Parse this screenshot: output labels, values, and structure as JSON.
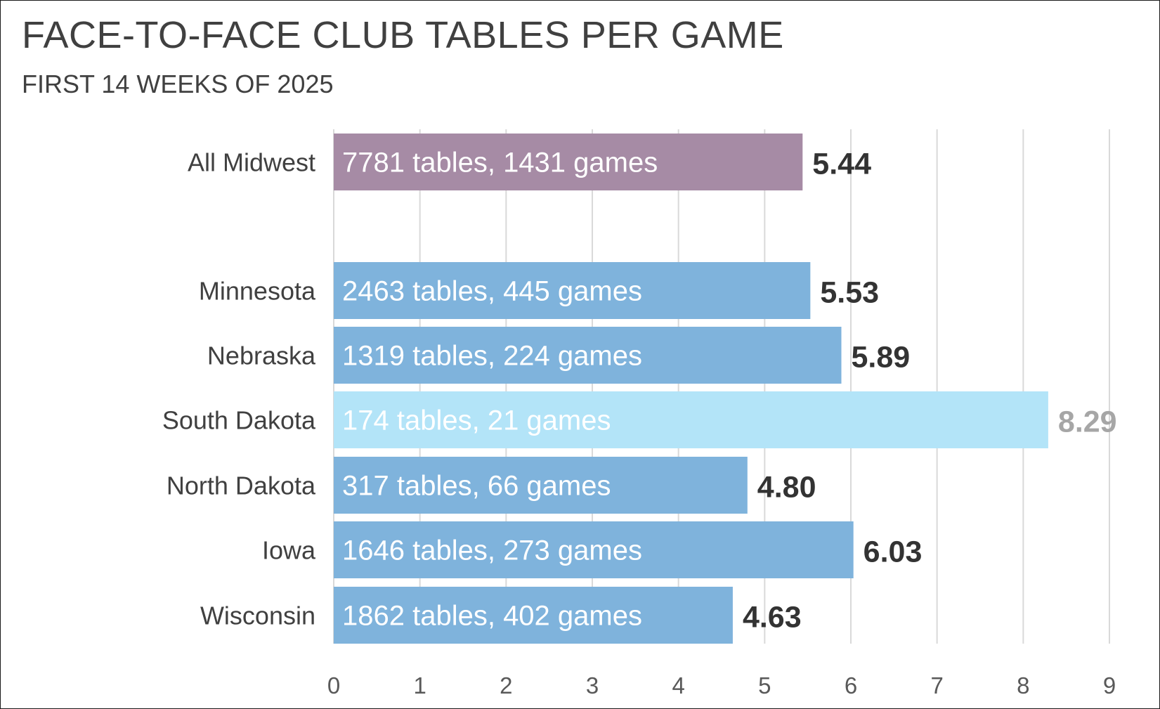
{
  "chart_data": {
    "type": "bar",
    "orientation": "horizontal",
    "title": "FACE-TO-FACE CLUB TABLES PER GAME",
    "subtitle": "FIRST 14 WEEKS OF 2025",
    "xlim": [
      0,
      9
    ],
    "x_ticks": [
      "0",
      "1",
      "2",
      "3",
      "4",
      "5",
      "6",
      "7",
      "8",
      "9"
    ],
    "grid": true,
    "rows": [
      {
        "category": "All Midwest",
        "value": 5.44,
        "value_label": "5.44",
        "bar_label": "7781 tables, 1431 games",
        "color": "#a68ba5",
        "label_color": "#333333"
      },
      {
        "category": "Minnesota",
        "value": 5.53,
        "value_label": "5.53",
        "bar_label": "2463 tables, 445 games",
        "color": "#7fb3dc",
        "label_color": "#333333"
      },
      {
        "category": "Nebraska",
        "value": 5.89,
        "value_label": "5.89",
        "bar_label": "1319 tables, 224 games",
        "color": "#7fb3dc",
        "label_color": "#333333"
      },
      {
        "category": "South Dakota",
        "value": 8.29,
        "value_label": "8.29",
        "bar_label": "174 tables, 21 games",
        "color": "#b3e4f8",
        "label_color": "#a6a6a6"
      },
      {
        "category": "North Dakota",
        "value": 4.8,
        "value_label": "4.80",
        "bar_label": "317 tables, 66 games",
        "color": "#7fb3dc",
        "label_color": "#333333"
      },
      {
        "category": "Iowa",
        "value": 6.03,
        "value_label": "6.03",
        "bar_label": "1646 tables, 273 games",
        "color": "#7fb3dc",
        "label_color": "#333333"
      },
      {
        "category": "Wisconsin",
        "value": 4.63,
        "value_label": "4.63",
        "bar_label": "1862 tables, 402 games",
        "color": "#7fb3dc",
        "label_color": "#333333"
      }
    ]
  }
}
